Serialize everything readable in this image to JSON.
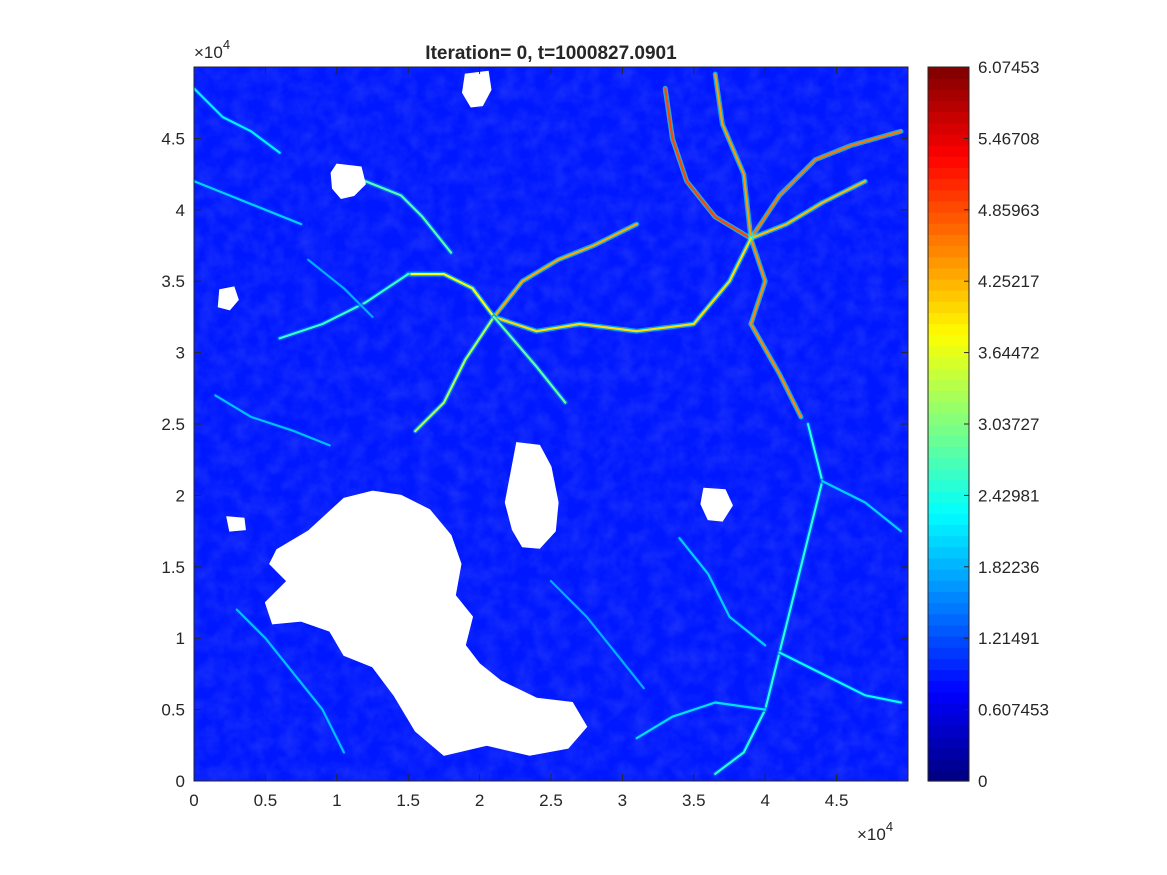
{
  "chart_data": {
    "type": "heatmap",
    "title": "Iteration= 0, t=1000827.0901",
    "xlabel": "",
    "ylabel": "",
    "xlim": [
      0,
      50000
    ],
    "ylim": [
      0,
      50000
    ],
    "x_ticks": [
      0,
      5000,
      10000,
      15000,
      20000,
      25000,
      30000,
      35000,
      40000,
      45000
    ],
    "x_tick_labels": [
      "0",
      "0.5",
      "1",
      "1.5",
      "2",
      "2.5",
      "3",
      "3.5",
      "4",
      "4.5"
    ],
    "y_ticks": [
      0,
      5000,
      10000,
      15000,
      20000,
      25000,
      30000,
      35000,
      40000,
      45000
    ],
    "y_tick_labels": [
      "0",
      "0.5",
      "1",
      "1.5",
      "2",
      "2.5",
      "3",
      "3.5",
      "4",
      "4.5"
    ],
    "x_exponent": {
      "base": "×10",
      "power": "4"
    },
    "y_exponent": {
      "base": "×10",
      "power": "4"
    },
    "colormap": "jet",
    "colorbar": {
      "range": [
        0,
        6.07453
      ],
      "ticks": [
        0,
        0.607453,
        1.21491,
        1.82236,
        2.42981,
        3.03727,
        3.64472,
        4.25217,
        4.85963,
        5.46708,
        6.07453
      ],
      "tick_labels": [
        "0",
        "0.607453",
        "1.21491",
        "1.82236",
        "2.42981",
        "3.03727",
        "3.64472",
        "4.25217",
        "4.85963",
        "5.46708",
        "6.07453"
      ]
    },
    "background_value": 0.9,
    "channel_network": [
      {
        "value": 4.9,
        "points": [
          [
            39000,
            38000
          ],
          [
            36500,
            39500
          ],
          [
            34500,
            42000
          ],
          [
            33500,
            45000
          ],
          [
            33000,
            48500
          ]
        ]
      },
      {
        "value": 4.6,
        "points": [
          [
            39000,
            38000
          ],
          [
            41000,
            41000
          ],
          [
            43500,
            43500
          ],
          [
            46000,
            44500
          ],
          [
            49500,
            45500
          ]
        ]
      },
      {
        "value": 4.4,
        "points": [
          [
            39000,
            38000
          ],
          [
            38500,
            42500
          ],
          [
            37000,
            46000
          ],
          [
            36500,
            49500
          ]
        ]
      },
      {
        "value": 4.2,
        "points": [
          [
            39000,
            38000
          ],
          [
            41500,
            39000
          ],
          [
            44000,
            40500
          ],
          [
            47000,
            42000
          ]
        ]
      },
      {
        "value": 4.5,
        "points": [
          [
            39000,
            38000
          ],
          [
            40000,
            35000
          ],
          [
            39000,
            32000
          ],
          [
            41000,
            28500
          ],
          [
            42500,
            25500
          ]
        ]
      },
      {
        "value": 4.0,
        "points": [
          [
            39000,
            38000
          ],
          [
            37500,
            35000
          ],
          [
            35000,
            32000
          ],
          [
            31000,
            31500
          ],
          [
            27000,
            32000
          ],
          [
            24000,
            31500
          ],
          [
            21000,
            32500
          ]
        ]
      },
      {
        "value": 4.3,
        "points": [
          [
            21000,
            32500
          ],
          [
            23000,
            35000
          ],
          [
            25500,
            36500
          ],
          [
            28000,
            37500
          ],
          [
            31000,
            39000
          ]
        ]
      },
      {
        "value": 3.8,
        "points": [
          [
            21000,
            32500
          ],
          [
            19500,
            34500
          ],
          [
            17500,
            35500
          ],
          [
            15000,
            35500
          ]
        ]
      },
      {
        "value": 3.3,
        "points": [
          [
            21000,
            32500
          ],
          [
            19000,
            29500
          ],
          [
            17500,
            26500
          ],
          [
            15500,
            24500
          ]
        ]
      },
      {
        "value": 2.9,
        "points": [
          [
            21000,
            32500
          ],
          [
            24000,
            29000
          ],
          [
            26000,
            26500
          ]
        ]
      },
      {
        "value": 2.8,
        "points": [
          [
            18000,
            37000
          ],
          [
            16000,
            39500
          ],
          [
            14500,
            41000
          ],
          [
            12000,
            42000
          ]
        ]
      },
      {
        "value": 2.6,
        "points": [
          [
            15000,
            35500
          ],
          [
            12000,
            33500
          ],
          [
            9000,
            32000
          ],
          [
            6000,
            31000
          ]
        ]
      },
      {
        "value": 2.5,
        "points": [
          [
            43000,
            25000
          ],
          [
            44000,
            21000
          ],
          [
            43000,
            17000
          ],
          [
            42000,
            13000
          ],
          [
            41000,
            9000
          ],
          [
            40000,
            5000
          ],
          [
            38500,
            2000
          ],
          [
            36500,
            500
          ]
        ]
      },
      {
        "value": 2.3,
        "points": [
          [
            41000,
            9000
          ],
          [
            44000,
            7500
          ],
          [
            47000,
            6000
          ],
          [
            49500,
            5500
          ]
        ]
      },
      {
        "value": 2.1,
        "points": [
          [
            40000,
            5000
          ],
          [
            36500,
            5500
          ],
          [
            33500,
            4500
          ],
          [
            31000,
            3000
          ]
        ]
      },
      {
        "value": 2.0,
        "points": [
          [
            44000,
            21000
          ],
          [
            47000,
            19500
          ],
          [
            49500,
            17500
          ]
        ]
      },
      {
        "value": 2.0,
        "points": [
          [
            34000,
            17000
          ],
          [
            36000,
            14500
          ],
          [
            37500,
            11500
          ],
          [
            40000,
            9500
          ]
        ]
      },
      {
        "value": 2.2,
        "points": [
          [
            0,
            48500
          ],
          [
            2000,
            46500
          ],
          [
            4000,
            45500
          ],
          [
            6000,
            44000
          ]
        ]
      },
      {
        "value": 2.0,
        "points": [
          [
            0,
            42000
          ],
          [
            2500,
            41000
          ],
          [
            5000,
            40000
          ],
          [
            7500,
            39000
          ]
        ]
      },
      {
        "value": 1.9,
        "points": [
          [
            1500,
            27000
          ],
          [
            4000,
            25500
          ],
          [
            7000,
            24500
          ],
          [
            9500,
            23500
          ]
        ]
      },
      {
        "value": 1.9,
        "points": [
          [
            3000,
            12000
          ],
          [
            5000,
            10000
          ],
          [
            7000,
            7500
          ],
          [
            9000,
            5000
          ],
          [
            10500,
            2000
          ]
        ]
      },
      {
        "value": 1.8,
        "points": [
          [
            25000,
            14000
          ],
          [
            27500,
            11500
          ],
          [
            29500,
            9000
          ],
          [
            31500,
            6500
          ]
        ]
      },
      {
        "value": 1.8,
        "points": [
          [
            8000,
            36500
          ],
          [
            10500,
            34500
          ],
          [
            12500,
            32500
          ]
        ]
      }
    ],
    "nodata_regions": [
      {
        "name": "southwest-landmass",
        "points": [
          [
            5800,
            16200
          ],
          [
            8000,
            17500
          ],
          [
            10500,
            19800
          ],
          [
            12500,
            20300
          ],
          [
            14500,
            20000
          ],
          [
            16500,
            19000
          ],
          [
            18000,
            17200
          ],
          [
            18700,
            15200
          ],
          [
            18300,
            13000
          ],
          [
            19500,
            11500
          ],
          [
            19000,
            9500
          ],
          [
            20000,
            8200
          ],
          [
            21500,
            7000
          ],
          [
            24000,
            5800
          ],
          [
            26500,
            5500
          ],
          [
            27500,
            3800
          ],
          [
            26200,
            2300
          ],
          [
            23500,
            1800
          ],
          [
            20500,
            2500
          ],
          [
            17500,
            1800
          ],
          [
            15500,
            3500
          ],
          [
            14000,
            6000
          ],
          [
            12500,
            8000
          ],
          [
            10500,
            8800
          ],
          [
            9500,
            10500
          ],
          [
            7500,
            11200
          ],
          [
            5500,
            11000
          ],
          [
            5000,
            12500
          ],
          [
            6500,
            14000
          ],
          [
            5300,
            15200
          ]
        ]
      },
      {
        "name": "central-patch",
        "points": [
          [
            22600,
            23700
          ],
          [
            24200,
            23500
          ],
          [
            25000,
            22000
          ],
          [
            25500,
            19500
          ],
          [
            25300,
            17500
          ],
          [
            24200,
            16300
          ],
          [
            23000,
            16400
          ],
          [
            22300,
            17600
          ],
          [
            21800,
            19500
          ],
          [
            22200,
            21600
          ]
        ]
      },
      {
        "name": "top-patch",
        "points": [
          [
            19000,
            49500
          ],
          [
            20600,
            49700
          ],
          [
            20800,
            48400
          ],
          [
            20200,
            47300
          ],
          [
            19400,
            47200
          ],
          [
            18800,
            48200
          ]
        ]
      },
      {
        "name": "upper-left-patch",
        "points": [
          [
            10000,
            43200
          ],
          [
            11700,
            43000
          ],
          [
            12000,
            41800
          ],
          [
            11200,
            41000
          ],
          [
            10300,
            40800
          ],
          [
            9700,
            41500
          ],
          [
            9600,
            42600
          ]
        ]
      },
      {
        "name": "left-small-patch",
        "points": [
          [
            1800,
            34400
          ],
          [
            2800,
            34600
          ],
          [
            3100,
            33700
          ],
          [
            2500,
            33000
          ],
          [
            1700,
            33200
          ]
        ]
      },
      {
        "name": "right-small-patch",
        "points": [
          [
            35700,
            20500
          ],
          [
            37200,
            20400
          ],
          [
            37700,
            19300
          ],
          [
            37000,
            18200
          ],
          [
            36000,
            18300
          ],
          [
            35500,
            19400
          ]
        ]
      },
      {
        "name": "far-left-patch",
        "points": [
          [
            2300,
            18500
          ],
          [
            3500,
            18400
          ],
          [
            3600,
            17600
          ],
          [
            2500,
            17500
          ]
        ]
      }
    ]
  }
}
